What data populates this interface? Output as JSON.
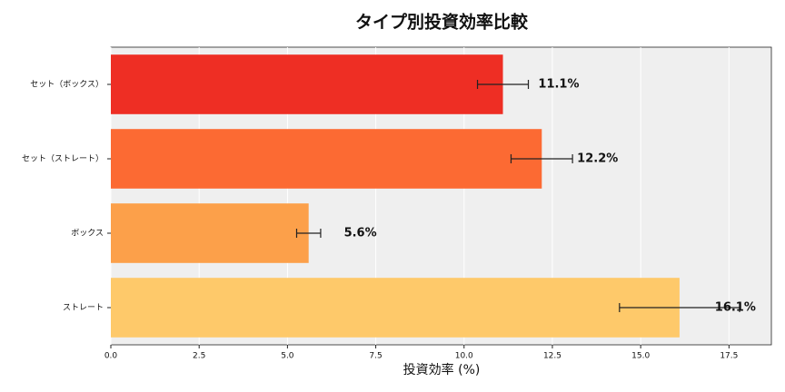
{
  "chart_data": {
    "type": "barh",
    "title": "タイプ別投資効率比較",
    "xlabel": "投資効率 (%)",
    "categories": [
      "セット（ボックス）",
      "セット（ストレート）",
      "ボックス",
      "ストレート"
    ],
    "values": [
      11.1,
      12.2,
      5.6,
      16.1
    ],
    "errors": [
      0.72,
      0.87,
      0.34,
      1.7
    ],
    "value_labels": [
      "11.1%",
      "12.2%",
      "5.6%",
      "16.1%"
    ],
    "colors": [
      "#ee2e24",
      "#fc6a33",
      "#fca04a",
      "#fec96a"
    ],
    "xlim": [
      0,
      18.7
    ],
    "xticks": [
      {
        "value": 0,
        "label": "0.0"
      },
      {
        "value": 2.5,
        "label": "2.5"
      },
      {
        "value": 5,
        "label": "5.0"
      },
      {
        "value": 7.5,
        "label": "7.5"
      },
      {
        "value": 10,
        "label": "10.0"
      },
      {
        "value": 12.5,
        "label": "12.5"
      },
      {
        "value": 15,
        "label": "15.0"
      },
      {
        "value": 17.5,
        "label": "17.5"
      }
    ],
    "grid": true
  }
}
